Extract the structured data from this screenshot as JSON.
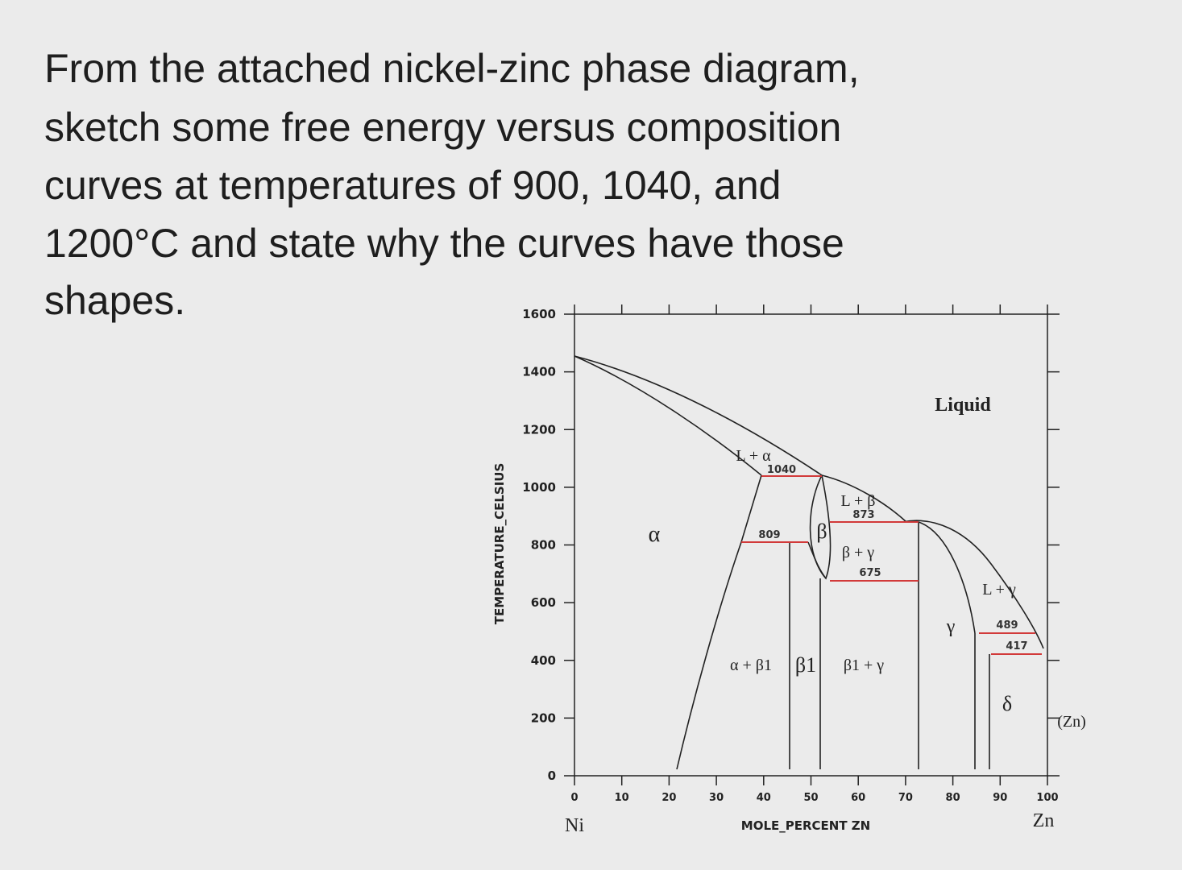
{
  "question": {
    "lines": [
      "From the attached nickel-zinc phase diagram,",
      "sketch some free energy versus composition",
      "curves at temperatures of 900, 1040, and",
      "1200°C and state why the curves have those",
      "shapes."
    ]
  },
  "diagram": {
    "y_axis_title": "TEMPERATURE_CELSIUS",
    "x_axis_title": "MOLE_PERCENT ZN",
    "yticks": [
      0,
      200,
      400,
      600,
      800,
      1000,
      1200,
      1400,
      1600
    ],
    "xticks": [
      0,
      10,
      20,
      30,
      40,
      50,
      60,
      70,
      80,
      90,
      100
    ],
    "x_left_element": "Ni",
    "x_right_element": "Zn",
    "labels": [
      "Liquid",
      "L + α",
      "1040",
      "α",
      "809",
      "β",
      "L + β",
      "873",
      "β + γ",
      "675",
      "γ",
      "L + γ",
      "489",
      "417",
      "α + β1",
      "β1",
      "β1 + γ",
      "δ",
      "(Zn)"
    ]
  }
}
